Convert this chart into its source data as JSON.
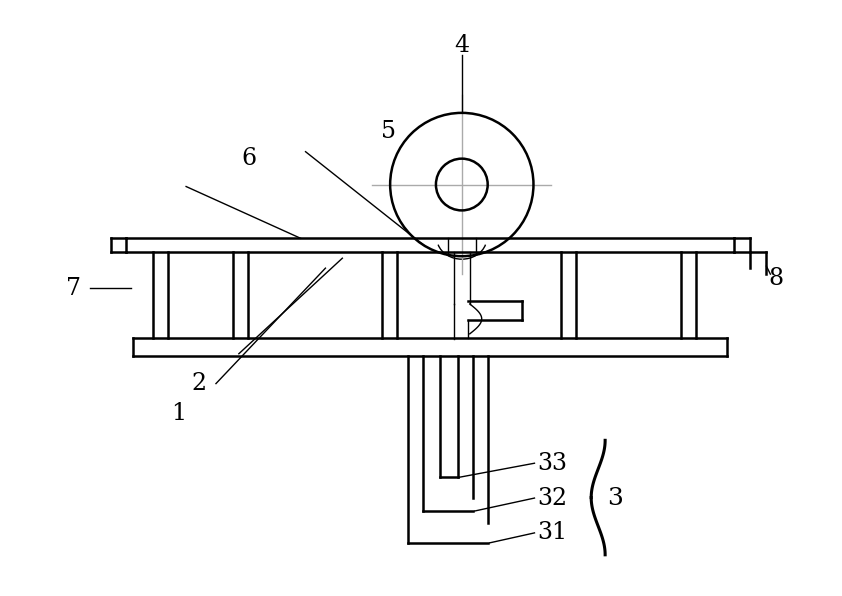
{
  "bg_color": "#ffffff",
  "line_color": "#000000",
  "gray_line_color": "#aaaaaa",
  "figsize": [
    8.42,
    5.96
  ],
  "dpi": 100
}
